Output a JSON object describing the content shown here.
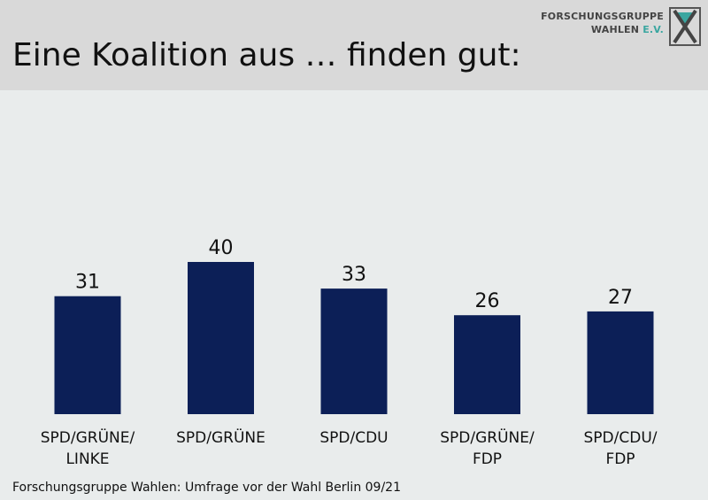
{
  "header": {
    "title": "Eine Koalition aus … finden gut:",
    "logo_line1": "FORSCHUNGSGRUPPE",
    "logo_line2_a": "WAHLEN ",
    "logo_line2_b": "E.V."
  },
  "footer": {
    "source": "Forschungsgruppe Wahlen: Umfrage vor der Wahl Berlin 09/21"
  },
  "colors": {
    "bar": "#0c1f57",
    "background": "#e9ecec",
    "header_band": "#d9d9d9",
    "logo_accent": "#3aa6a0"
  },
  "chart_data": {
    "type": "bar",
    "title": "Eine Koalition aus … finden gut:",
    "categories": [
      [
        "SPD/GRÜNE/",
        "LINKE"
      ],
      [
        "SPD/GRÜNE"
      ],
      [
        "SPD/CDU"
      ],
      [
        "SPD/GRÜNE/",
        "FDP"
      ],
      [
        "SPD/CDU/",
        "FDP"
      ]
    ],
    "values": [
      31,
      40,
      33,
      26,
      27
    ],
    "data_labels": true,
    "y_axis_visible": false,
    "grid": false,
    "legend": "none",
    "ylim": [
      0,
      40
    ]
  }
}
